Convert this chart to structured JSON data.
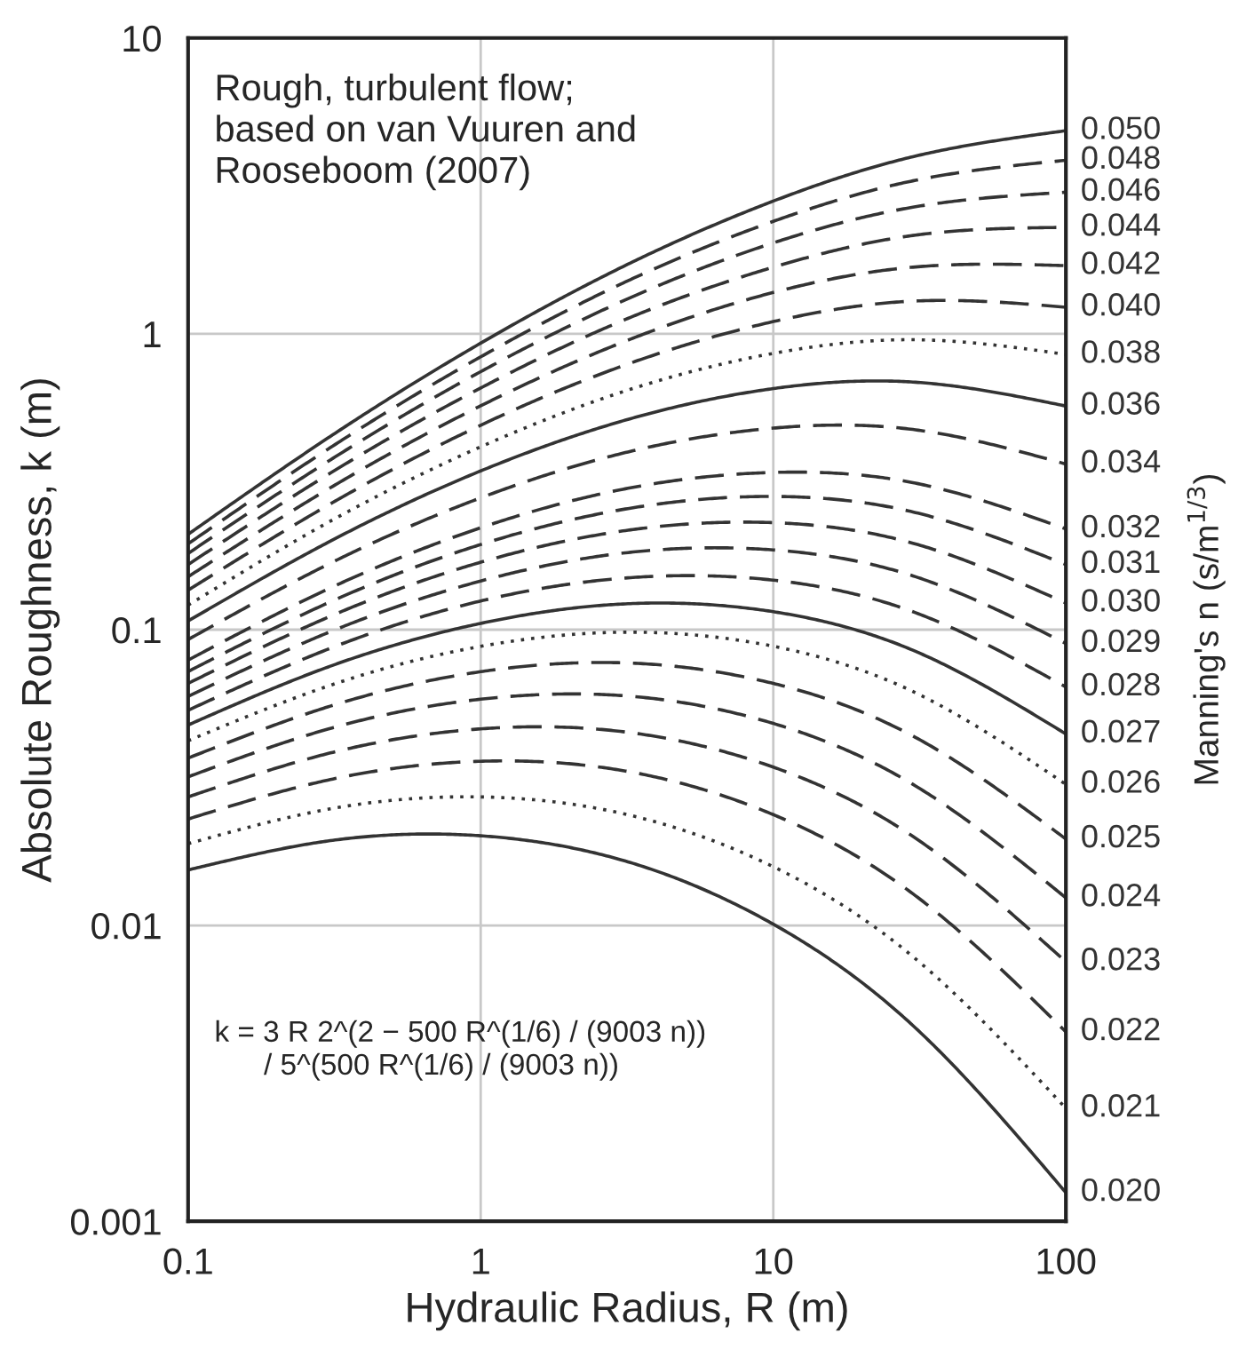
{
  "chart_data": {
    "type": "line",
    "xlabel": "Hydraulic Radius, R (m)",
    "ylabel": "Absolute Roughness, k (m)",
    "legend_title": "Manning's n (s/m$^{1/3}$)",
    "log": "xy",
    "grid": true,
    "xlim": [
      0.1,
      100
    ],
    "xticks": [
      0.1,
      1,
      10,
      100
    ],
    "ylim": [
      0.001,
      10
    ],
    "yticks": [
      0.001,
      0.01,
      0.1,
      1,
      10
    ],
    "x": [
      0.1,
      0.3,
      1,
      3,
      10,
      30,
      100
    ],
    "annotations": [
      "Rough, turbulent flow;\nbased on van Vuuren and\nRooseboom (2007)",
      "k = 3 R 2^(2 − 500 R^(1/6) / (9003 n))\n      / 5^(500 R^(1/6) / (9003 n))"
    ],
    "series": [
      {
        "name": "0.020",
        "color": "#333333",
        "line_style": "solid",
        "values": [
          0.0154,
          0.0193,
          0.0201,
          0.0167,
          0.0101,
          0.00459,
          0.00125
        ]
      },
      {
        "name": "0.021",
        "color": "#333333",
        "line_style": "dotted",
        "values": [
          0.0189,
          0.0247,
          0.0272,
          0.024,
          0.0158,
          0.00785,
          0.00241
        ]
      },
      {
        "name": "0.022",
        "color": "#333333",
        "line_style": "dashed",
        "values": [
          0.0229,
          0.031,
          0.0359,
          0.0335,
          0.0237,
          0.0128,
          0.00437
        ]
      },
      {
        "name": "0.023",
        "color": "#333333",
        "line_style": "dashed",
        "values": [
          0.0272,
          0.0381,
          0.0462,
          0.0453,
          0.0343,
          0.02,
          0.00754
        ]
      },
      {
        "name": "0.024",
        "color": "#333333",
        "line_style": "dashed",
        "values": [
          0.0318,
          0.0461,
          0.0582,
          0.0599,
          0.0482,
          0.03,
          0.0124
        ]
      },
      {
        "name": "0.025",
        "color": "#333333",
        "line_style": "dashed",
        "values": [
          0.0368,
          0.0548,
          0.0721,
          0.0773,
          0.0658,
          0.0437,
          0.0196
        ]
      },
      {
        "name": "0.026",
        "color": "#333333",
        "line_style": "dotted",
        "values": [
          0.0421,
          0.0644,
          0.0878,
          0.098,
          0.0879,
          0.0618,
          0.03
        ]
      },
      {
        "name": "0.027",
        "color": "#333333",
        "line_style": "solid",
        "values": [
          0.0476,
          0.0747,
          0.105,
          0.122,
          0.115,
          0.0852,
          0.0444
        ]
      },
      {
        "name": "0.028",
        "color": "#333333",
        "line_style": "dashed",
        "values": [
          0.0534,
          0.0858,
          0.125,
          0.149,
          0.147,
          0.115,
          0.064
        ]
      },
      {
        "name": "0.029",
        "color": "#333333",
        "line_style": "dashed",
        "values": [
          0.0595,
          0.0976,
          0.146,
          0.181,
          0.186,
          0.152,
          0.0898
        ]
      },
      {
        "name": "0.030",
        "color": "#333333",
        "line_style": "dashed",
        "values": [
          0.0658,
          0.11,
          0.169,
          0.215,
          0.23,
          0.196,
          0.123
        ]
      },
      {
        "name": "0.031",
        "color": "#333333",
        "line_style": "dashed",
        "values": [
          0.0722,
          0.123,
          0.194,
          0.254,
          0.282,
          0.25,
          0.166
        ]
      },
      {
        "name": "0.032",
        "color": "#333333",
        "line_style": "dashed",
        "values": [
          0.0789,
          0.137,
          0.221,
          0.297,
          0.34,
          0.314,
          0.219
        ]
      },
      {
        "name": "0.034",
        "color": "#333333",
        "line_style": "dashed",
        "values": [
          0.0926,
          0.166,
          0.279,
          0.393,
          0.48,
          0.475,
          0.363
        ]
      },
      {
        "name": "0.036",
        "color": "#333333",
        "line_style": "solid",
        "values": [
          0.107,
          0.197,
          0.344,
          0.505,
          0.653,
          0.687,
          0.57
        ]
      },
      {
        "name": "0.038",
        "color": "#333333",
        "line_style": "dotted",
        "values": [
          0.121,
          0.23,
          0.415,
          0.633,
          0.859,
          0.955,
          0.852
        ]
      },
      {
        "name": "0.040",
        "color": "#333333",
        "line_style": "dashed",
        "values": [
          0.136,
          0.263,
          0.491,
          0.774,
          1.1,
          1.29,
          1.23
        ]
      },
      {
        "name": "0.042",
        "color": "#333333",
        "line_style": "dashed",
        "values": [
          0.151,
          0.298,
          0.571,
          0.93,
          1.38,
          1.68,
          1.7
        ]
      },
      {
        "name": "0.044",
        "color": "#333333",
        "line_style": "dashed",
        "values": [
          0.166,
          0.334,
          0.656,
          1.1,
          1.68,
          2.15,
          2.29
        ]
      },
      {
        "name": "0.046",
        "color": "#333333",
        "line_style": "dashed",
        "values": [
          0.181,
          0.37,
          0.745,
          1.28,
          2.03,
          2.68,
          3.01
        ]
      },
      {
        "name": "0.048",
        "color": "#333333",
        "line_style": "dashed",
        "values": [
          0.195,
          0.407,
          0.836,
          1.47,
          2.4,
          3.29,
          3.86
        ]
      },
      {
        "name": "0.050",
        "color": "#333333",
        "line_style": "solid",
        "values": [
          0.21,
          0.444,
          0.93,
          1.67,
          2.81,
          3.97,
          4.86
        ]
      }
    ]
  }
}
